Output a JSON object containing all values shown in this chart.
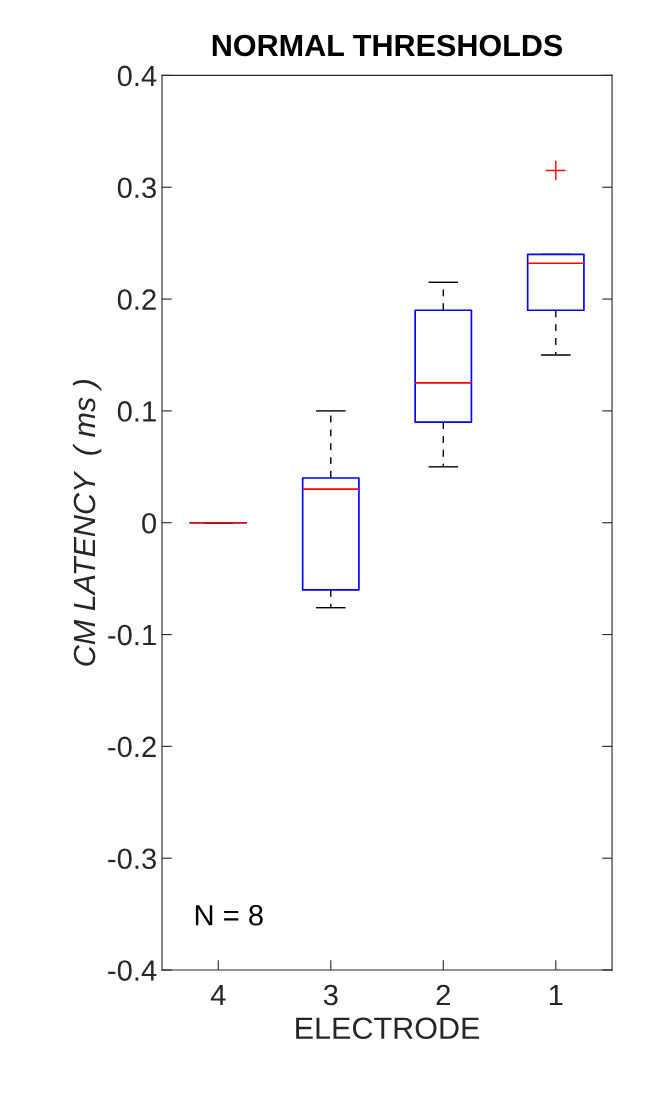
{
  "chart_data": {
    "type": "box",
    "title": "NORMAL THRESHOLDS",
    "xlabel": "ELECTRODE",
    "ylabel": "CM LATENCY  ( ms )",
    "categories": [
      "4",
      "3",
      "2",
      "1"
    ],
    "boxes": [
      {
        "low": 0,
        "q1": 0,
        "median": 0,
        "q3": 0,
        "high": 0
      },
      {
        "low": -0.076,
        "q1": -0.06,
        "median": 0.03,
        "q3": 0.04,
        "high": 0.1
      },
      {
        "low": 0.05,
        "q1": 0.09,
        "median": 0.125,
        "q3": 0.19,
        "high": 0.215
      },
      {
        "low": 0.15,
        "q1": 0.19,
        "median": 0.232,
        "q3": 0.24,
        "high": 0.24,
        "outliers": [
          0.315
        ]
      }
    ],
    "color": "#0000ff",
    "ylim": [
      -0.4,
      0.4
    ],
    "yticks": [
      -0.4,
      -0.3,
      -0.2,
      -0.1,
      0,
      0.1,
      0.2,
      0.3,
      0.4
    ],
    "grid": false,
    "marker": "cross",
    "annotations": [
      "N = 8"
    ]
  }
}
